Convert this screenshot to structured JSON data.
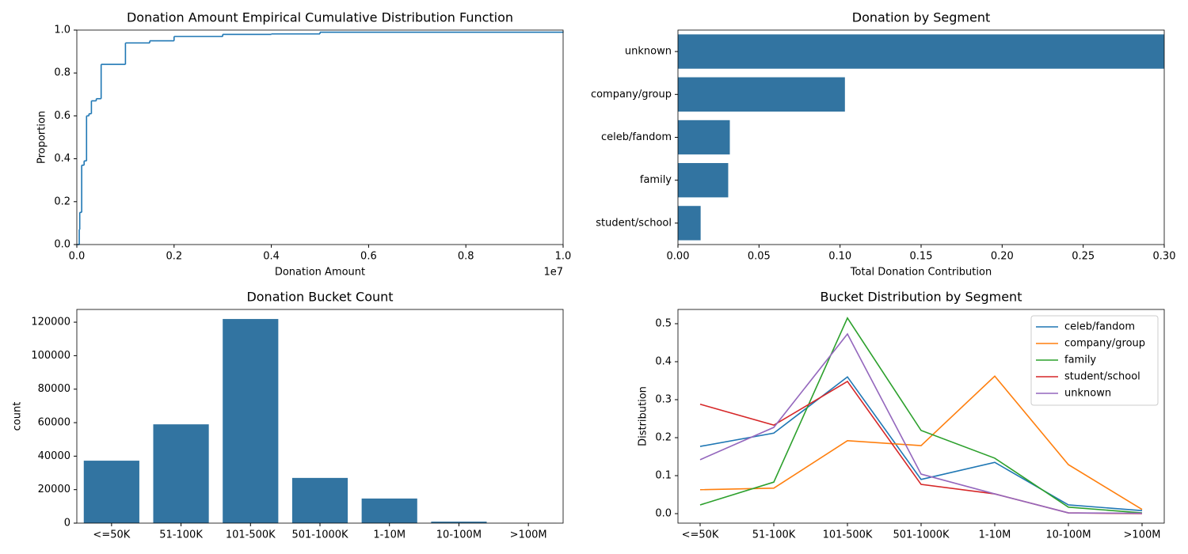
{
  "chart_data": [
    {
      "type": "step",
      "title": "Donation Amount Empirical Cumulative Distribution Function",
      "x_label": "Donation Amount",
      "y_label": "Proportion",
      "x_offset_label": "1e7",
      "color": "#1f77b4",
      "x": [
        0,
        50000,
        60000,
        100000,
        150000,
        200000,
        250000,
        300000,
        400000,
        500000,
        1000000,
        1500000,
        2000000,
        3000000,
        4000000,
        5000000,
        10000000
      ],
      "values": [
        0,
        0.07,
        0.15,
        0.37,
        0.39,
        0.6,
        0.61,
        0.67,
        0.68,
        0.84,
        0.94,
        0.95,
        0.97,
        0.98,
        0.982,
        0.99,
        0.993
      ],
      "xlim": [
        0,
        10000000
      ],
      "xticks": [
        {
          "value": 0,
          "label": "0.0"
        },
        {
          "value": 2000000,
          "label": "0.2"
        },
        {
          "value": 4000000,
          "label": "0.4"
        },
        {
          "value": 6000000,
          "label": "0.6"
        },
        {
          "value": 8000000,
          "label": "0.8"
        },
        {
          "value": 10000000,
          "label": "1.0"
        }
      ],
      "ylim": [
        0,
        1
      ],
      "yticks": [
        {
          "value": 0,
          "label": "0.0"
        },
        {
          "value": 0.2,
          "label": "0.2"
        },
        {
          "value": 0.4,
          "label": "0.4"
        },
        {
          "value": 0.6,
          "label": "0.6"
        },
        {
          "value": 0.8,
          "label": "0.8"
        },
        {
          "value": 1,
          "label": "1.0"
        }
      ]
    },
    {
      "type": "bar",
      "orientation": "horizontal",
      "title": "Donation by Segment",
      "x_label": "Total Donation Contribution",
      "color": "#3274a1",
      "categories": [
        "unknown",
        "company/group",
        "celeb/fandom",
        "family",
        "student/school"
      ],
      "values": [
        0.3,
        0.103,
        0.032,
        0.031,
        0.014
      ],
      "xlim": [
        0,
        0.3
      ],
      "xticks": [
        {
          "value": 0,
          "label": "0.00"
        },
        {
          "value": 0.05,
          "label": "0.05"
        },
        {
          "value": 0.1,
          "label": "0.10"
        },
        {
          "value": 0.15,
          "label": "0.15"
        },
        {
          "value": 0.2,
          "label": "0.20"
        },
        {
          "value": 0.25,
          "label": "0.25"
        },
        {
          "value": 0.3,
          "label": "0.30"
        }
      ]
    },
    {
      "type": "bar",
      "title": "Donation Bucket Count",
      "y_label": "count",
      "color": "#3274a1",
      "categories": [
        "<=50K",
        "51-100K",
        "101-500K",
        "501-1000K",
        "1-10M",
        "10-100M",
        ">100M"
      ],
      "values": [
        37300,
        59000,
        121900,
        27000,
        14700,
        900,
        50
      ],
      "ylim": [
        0,
        127600
      ],
      "yticks": [
        0,
        20000,
        40000,
        60000,
        80000,
        100000,
        120000
      ]
    },
    {
      "type": "line",
      "title": "Bucket Distribution by Segment",
      "y_label": "Distribution",
      "legend": "upper right",
      "categories": [
        "<=50K",
        "51-100K",
        "101-500K",
        "501-1000K",
        "1-10M",
        "10-100M",
        ">100M"
      ],
      "series": [
        {
          "name": "celeb/fandom",
          "color": "#1f77b4",
          "values": [
            0.177,
            0.212,
            0.36,
            0.09,
            0.135,
            0.023,
            0.008
          ]
        },
        {
          "name": "company/group",
          "color": "#ff7f0e",
          "values": [
            0.063,
            0.067,
            0.192,
            0.179,
            0.362,
            0.129,
            0.011
          ]
        },
        {
          "name": "family",
          "color": "#2ca02c",
          "values": [
            0.023,
            0.083,
            0.515,
            0.219,
            0.146,
            0.017,
            0.002
          ]
        },
        {
          "name": "student/school",
          "color": "#d62728",
          "values": [
            0.288,
            0.233,
            0.348,
            0.077,
            0.052,
            0.002,
            0.0
          ]
        },
        {
          "name": "unknown",
          "color": "#9467bd",
          "values": [
            0.142,
            0.227,
            0.473,
            0.104,
            0.052,
            0.002,
            0.001
          ]
        }
      ],
      "ylim": [
        -0.025,
        0.5375
      ],
      "yticks": [
        {
          "value": 0,
          "label": "0.0"
        },
        {
          "value": 0.1,
          "label": "0.1"
        },
        {
          "value": 0.2,
          "label": "0.2"
        },
        {
          "value": 0.3,
          "label": "0.3"
        },
        {
          "value": 0.4,
          "label": "0.4"
        },
        {
          "value": 0.5,
          "label": "0.5"
        }
      ]
    }
  ]
}
